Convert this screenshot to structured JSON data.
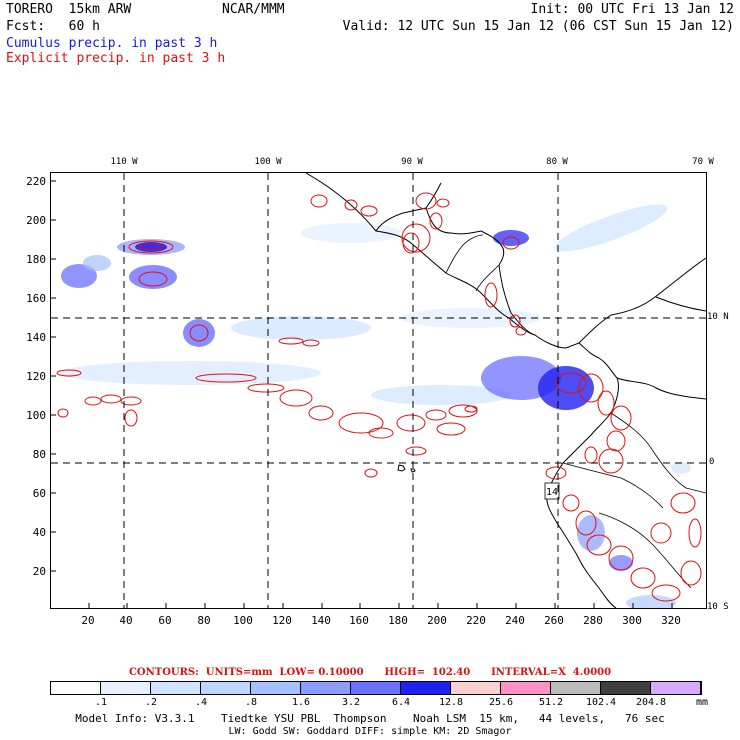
{
  "header": {
    "model": "TORERO  15km ARW",
    "center": "NCAR/MMM",
    "init": "Init: 00 UTC Fri 13 Jan 12",
    "fcst": "Fcst:   60 h",
    "valid": "Valid: 12 UTC Sun 15 Jan 12 (06 CST Sun 15 Jan 12)",
    "line_cumulus": "Cumulus precip. in past 3 h",
    "line_explicit": "Explicit precip. in past 3 h"
  },
  "colors": {
    "cumulus": "#1a1adb",
    "explicit": "#e01010",
    "grid": "#000000"
  },
  "axes": {
    "top_lon_labels": [
      "110 W",
      "100 W",
      "90 W",
      "80 W",
      "70 W"
    ],
    "right_lat_labels": [
      "10 N",
      "0",
      "10 S"
    ],
    "y_ticks": [
      "220",
      "200",
      "180",
      "160",
      "140",
      "120",
      "100",
      "80",
      "60",
      "40",
      "20"
    ],
    "x_ticks": [
      "20",
      "40",
      "60",
      "80",
      "100",
      "120",
      "140",
      "160",
      "180",
      "200",
      "220",
      "240",
      "260",
      "280",
      "300",
      "320"
    ]
  },
  "contours_text": "CONTOURS:  UNITS=mm  LOW= 0.10000      HIGH=  102.40      INTERVAL=X  4.0000",
  "legend": {
    "unit": "mm",
    "labels": [
      ".1",
      ".2",
      ".4",
      ".8",
      "1.6",
      "3.2",
      "6.4",
      "12.8",
      "25.6",
      "51.2",
      "102.4",
      "204.8"
    ],
    "colors": [
      "#ffffff",
      "#e6f0ff",
      "#d0e4ff",
      "#bcd6ff",
      "#a4c0ff",
      "#8c9cff",
      "#6e70ff",
      "#2020f0",
      "#ffd0d0",
      "#ff90c8",
      "#bcbcbc",
      "#404040",
      "#d8a8ff"
    ]
  },
  "footer": {
    "line1": "Model Info: V3.3.1    Tiedtke YSU PBL  Thompson    Noah LSM  15 km,   44 levels,   76 sec",
    "line2": "LW: Godd SW: Goddard DIFF: simple KM: 2D Smagor"
  },
  "map_label": "14"
}
